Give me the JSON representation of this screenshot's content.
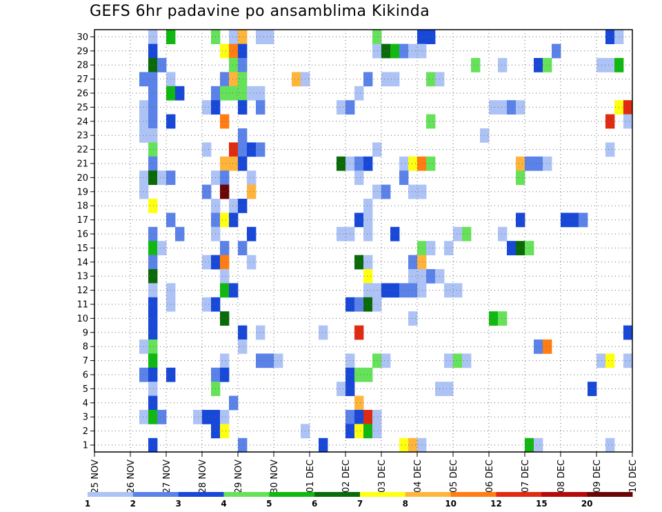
{
  "title": "GEFS 6hr padavine po ansamblima Kikinda",
  "chart_data": {
    "type": "heatmap",
    "title": "GEFS 6hr padavine po ansamblima Kikinda",
    "x_tick_labels": [
      "25 NOV",
      "26 NOV",
      "27 NOV",
      "28 NOV",
      "29 NOV",
      "30 NOV",
      "01 DEC",
      "02 DEC",
      "03 DEC",
      "04 DEC",
      "05 DEC",
      "06 DEC",
      "07 DEC",
      "08 DEC",
      "09 DEC",
      "10 DEC"
    ],
    "xlim_days": [
      0,
      15
    ],
    "steps_per_day": 4,
    "y_tick_labels": [
      "1",
      "2",
      "3",
      "4",
      "5",
      "6",
      "7",
      "8",
      "9",
      "10",
      "11",
      "12",
      "13",
      "14",
      "15",
      "16",
      "17",
      "18",
      "19",
      "20",
      "21",
      "22",
      "23",
      "24",
      "25",
      "26",
      "27",
      "28",
      "29",
      "30"
    ],
    "ylim": [
      0,
      30
    ],
    "grid": true,
    "colorbar": {
      "labels": [
        "1",
        "2",
        "3",
        "4",
        "5",
        "6",
        "7",
        "8",
        "10",
        "12",
        "15",
        "20"
      ],
      "colors": [
        "#aec3f5",
        "#5a82e8",
        "#1848d8",
        "#66e25a",
        "#12b812",
        "#0a6a0a",
        "#ffff12",
        "#ffb43c",
        "#ff7d12",
        "#e02a12",
        "#b40a0a",
        "#6a0505"
      ]
    },
    "cells": [
      {
        "m": 30,
        "t": 6,
        "c": 0
      },
      {
        "m": 30,
        "t": 8,
        "c": 4
      },
      {
        "m": 30,
        "t": 13,
        "c": 3
      },
      {
        "m": 30,
        "t": 15,
        "c": 0
      },
      {
        "m": 30,
        "t": 16,
        "c": 7
      },
      {
        "m": 30,
        "t": 18,
        "c": 0
      },
      {
        "m": 30,
        "t": 19,
        "c": 0
      },
      {
        "m": 30,
        "t": 31,
        "c": 3
      },
      {
        "m": 30,
        "t": 36,
        "c": 2
      },
      {
        "m": 30,
        "t": 37,
        "c": 2
      },
      {
        "m": 30,
        "t": 57,
        "c": 2
      },
      {
        "m": 30,
        "t": 58,
        "c": 0
      },
      {
        "m": 29,
        "t": 6,
        "c": 2
      },
      {
        "m": 29,
        "t": 14,
        "c": 6
      },
      {
        "m": 29,
        "t": 15,
        "c": 8
      },
      {
        "m": 29,
        "t": 16,
        "c": 2
      },
      {
        "m": 29,
        "t": 31,
        "c": 0
      },
      {
        "m": 29,
        "t": 32,
        "c": 5
      },
      {
        "m": 29,
        "t": 33,
        "c": 4
      },
      {
        "m": 29,
        "t": 34,
        "c": 1
      },
      {
        "m": 29,
        "t": 35,
        "c": 0
      },
      {
        "m": 29,
        "t": 36,
        "c": 0
      },
      {
        "m": 29,
        "t": 51,
        "c": 1
      },
      {
        "m": 28,
        "t": 6,
        "c": 5
      },
      {
        "m": 28,
        "t": 7,
        "c": 1
      },
      {
        "m": 28,
        "t": 15,
        "c": 3
      },
      {
        "m": 28,
        "t": 16,
        "c": 1
      },
      {
        "m": 28,
        "t": 42,
        "c": 3
      },
      {
        "m": 28,
        "t": 45,
        "c": 0
      },
      {
        "m": 28,
        "t": 49,
        "c": 2
      },
      {
        "m": 28,
        "t": 50,
        "c": 3
      },
      {
        "m": 28,
        "t": 56,
        "c": 0
      },
      {
        "m": 28,
        "t": 57,
        "c": 0
      },
      {
        "m": 28,
        "t": 58,
        "c": 4
      },
      {
        "m": 27,
        "t": 5,
        "c": 1
      },
      {
        "m": 27,
        "t": 6,
        "c": 1
      },
      {
        "m": 27,
        "t": 8,
        "c": 0
      },
      {
        "m": 27,
        "t": 14,
        "c": 1
      },
      {
        "m": 27,
        "t": 15,
        "c": 7
      },
      {
        "m": 27,
        "t": 16,
        "c": 3
      },
      {
        "m": 27,
        "t": 22,
        "c": 7
      },
      {
        "m": 27,
        "t": 23,
        "c": 0
      },
      {
        "m": 27,
        "t": 30,
        "c": 1
      },
      {
        "m": 27,
        "t": 32,
        "c": 0
      },
      {
        "m": 27,
        "t": 33,
        "c": 0
      },
      {
        "m": 27,
        "t": 37,
        "c": 3
      },
      {
        "m": 27,
        "t": 38,
        "c": 0
      },
      {
        "m": 26,
        "t": 6,
        "c": 1
      },
      {
        "m": 26,
        "t": 8,
        "c": 4
      },
      {
        "m": 26,
        "t": 9,
        "c": 2
      },
      {
        "m": 26,
        "t": 13,
        "c": 1
      },
      {
        "m": 26,
        "t": 14,
        "c": 3
      },
      {
        "m": 26,
        "t": 15,
        "c": 3
      },
      {
        "m": 26,
        "t": 16,
        "c": 3
      },
      {
        "m": 26,
        "t": 17,
        "c": 0
      },
      {
        "m": 26,
        "t": 18,
        "c": 0
      },
      {
        "m": 26,
        "t": 29,
        "c": 0
      },
      {
        "m": 25,
        "t": 5,
        "c": 0
      },
      {
        "m": 25,
        "t": 6,
        "c": 1
      },
      {
        "m": 25,
        "t": 12,
        "c": 0
      },
      {
        "m": 25,
        "t": 13,
        "c": 2
      },
      {
        "m": 25,
        "t": 16,
        "c": 2
      },
      {
        "m": 25,
        "t": 18,
        "c": 1
      },
      {
        "m": 25,
        "t": 27,
        "c": 0
      },
      {
        "m": 25,
        "t": 28,
        "c": 1
      },
      {
        "m": 25,
        "t": 44,
        "c": 0
      },
      {
        "m": 25,
        "t": 45,
        "c": 0
      },
      {
        "m": 25,
        "t": 46,
        "c": 1
      },
      {
        "m": 25,
        "t": 47,
        "c": 0
      },
      {
        "m": 25,
        "t": 58,
        "c": 6
      },
      {
        "m": 25,
        "t": 59,
        "c": 9
      },
      {
        "m": 24,
        "t": 5,
        "c": 0
      },
      {
        "m": 24,
        "t": 6,
        "c": 1
      },
      {
        "m": 24,
        "t": 8,
        "c": 2
      },
      {
        "m": 24,
        "t": 14,
        "c": 8
      },
      {
        "m": 24,
        "t": 37,
        "c": 3
      },
      {
        "m": 24,
        "t": 57,
        "c": 9
      },
      {
        "m": 24,
        "t": 59,
        "c": 0
      },
      {
        "m": 23,
        "t": 5,
        "c": 0
      },
      {
        "m": 23,
        "t": 6,
        "c": 0
      },
      {
        "m": 23,
        "t": 16,
        "c": 1
      },
      {
        "m": 23,
        "t": 43,
        "c": 0
      },
      {
        "m": 22,
        "t": 6,
        "c": 3
      },
      {
        "m": 22,
        "t": 12,
        "c": 0
      },
      {
        "m": 22,
        "t": 15,
        "c": 9
      },
      {
        "m": 22,
        "t": 16,
        "c": 1
      },
      {
        "m": 22,
        "t": 17,
        "c": 2
      },
      {
        "m": 22,
        "t": 18,
        "c": 1
      },
      {
        "m": 22,
        "t": 31,
        "c": 0
      },
      {
        "m": 22,
        "t": 57,
        "c": 0
      },
      {
        "m": 21,
        "t": 6,
        "c": 1
      },
      {
        "m": 21,
        "t": 14,
        "c": 7
      },
      {
        "m": 21,
        "t": 15,
        "c": 7
      },
      {
        "m": 21,
        "t": 16,
        "c": 2
      },
      {
        "m": 21,
        "t": 27,
        "c": 5
      },
      {
        "m": 21,
        "t": 28,
        "c": 0
      },
      {
        "m": 21,
        "t": 29,
        "c": 1
      },
      {
        "m": 21,
        "t": 30,
        "c": 2
      },
      {
        "m": 21,
        "t": 34,
        "c": 0
      },
      {
        "m": 21,
        "t": 35,
        "c": 6
      },
      {
        "m": 21,
        "t": 36,
        "c": 8
      },
      {
        "m": 21,
        "t": 37,
        "c": 3
      },
      {
        "m": 21,
        "t": 47,
        "c": 7
      },
      {
        "m": 21,
        "t": 48,
        "c": 1
      },
      {
        "m": 21,
        "t": 49,
        "c": 1
      },
      {
        "m": 21,
        "t": 50,
        "c": 0
      },
      {
        "m": 20,
        "t": 5,
        "c": 0
      },
      {
        "m": 20,
        "t": 6,
        "c": 5
      },
      {
        "m": 20,
        "t": 7,
        "c": 0
      },
      {
        "m": 20,
        "t": 8,
        "c": 1
      },
      {
        "m": 20,
        "t": 13,
        "c": 0
      },
      {
        "m": 20,
        "t": 14,
        "c": 1
      },
      {
        "m": 20,
        "t": 17,
        "c": 0
      },
      {
        "m": 20,
        "t": 29,
        "c": 0
      },
      {
        "m": 20,
        "t": 34,
        "c": 1
      },
      {
        "m": 20,
        "t": 47,
        "c": 3
      },
      {
        "m": 19,
        "t": 5,
        "c": 0
      },
      {
        "m": 19,
        "t": 12,
        "c": 1
      },
      {
        "m": 19,
        "t": 14,
        "c": 11
      },
      {
        "m": 19,
        "t": 17,
        "c": 7
      },
      {
        "m": 19,
        "t": 31,
        "c": 0
      },
      {
        "m": 19,
        "t": 32,
        "c": 1
      },
      {
        "m": 19,
        "t": 35,
        "c": 0
      },
      {
        "m": 19,
        "t": 36,
        "c": 0
      },
      {
        "m": 18,
        "t": 6,
        "c": 6
      },
      {
        "m": 18,
        "t": 13,
        "c": 0
      },
      {
        "m": 18,
        "t": 15,
        "c": 0
      },
      {
        "m": 18,
        "t": 16,
        "c": 2
      },
      {
        "m": 18,
        "t": 30,
        "c": 0
      },
      {
        "m": 17,
        "t": 8,
        "c": 1
      },
      {
        "m": 17,
        "t": 13,
        "c": 1
      },
      {
        "m": 17,
        "t": 14,
        "c": 6
      },
      {
        "m": 17,
        "t": 15,
        "c": 2
      },
      {
        "m": 17,
        "t": 29,
        "c": 2
      },
      {
        "m": 17,
        "t": 30,
        "c": 0
      },
      {
        "m": 17,
        "t": 47,
        "c": 2
      },
      {
        "m": 17,
        "t": 52,
        "c": 2
      },
      {
        "m": 17,
        "t": 53,
        "c": 2
      },
      {
        "m": 17,
        "t": 54,
        "c": 1
      },
      {
        "m": 16,
        "t": 6,
        "c": 1
      },
      {
        "m": 16,
        "t": 9,
        "c": 1
      },
      {
        "m": 16,
        "t": 13,
        "c": 0
      },
      {
        "m": 16,
        "t": 17,
        "c": 2
      },
      {
        "m": 16,
        "t": 27,
        "c": 0
      },
      {
        "m": 16,
        "t": 28,
        "c": 0
      },
      {
        "m": 16,
        "t": 30,
        "c": 0
      },
      {
        "m": 16,
        "t": 33,
        "c": 2
      },
      {
        "m": 16,
        "t": 40,
        "c": 0
      },
      {
        "m": 16,
        "t": 41,
        "c": 3
      },
      {
        "m": 16,
        "t": 45,
        "c": 0
      },
      {
        "m": 15,
        "t": 6,
        "c": 4
      },
      {
        "m": 15,
        "t": 7,
        "c": 0
      },
      {
        "m": 15,
        "t": 14,
        "c": 1
      },
      {
        "m": 15,
        "t": 16,
        "c": 1
      },
      {
        "m": 15,
        "t": 36,
        "c": 3
      },
      {
        "m": 15,
        "t": 37,
        "c": 0
      },
      {
        "m": 15,
        "t": 39,
        "c": 0
      },
      {
        "m": 15,
        "t": 46,
        "c": 2
      },
      {
        "m": 15,
        "t": 47,
        "c": 5
      },
      {
        "m": 15,
        "t": 48,
        "c": 3
      },
      {
        "m": 14,
        "t": 6,
        "c": 1
      },
      {
        "m": 14,
        "t": 12,
        "c": 0
      },
      {
        "m": 14,
        "t": 13,
        "c": 2
      },
      {
        "m": 14,
        "t": 14,
        "c": 8
      },
      {
        "m": 14,
        "t": 17,
        "c": 0
      },
      {
        "m": 14,
        "t": 29,
        "c": 5
      },
      {
        "m": 14,
        "t": 30,
        "c": 0
      },
      {
        "m": 14,
        "t": 35,
        "c": 1
      },
      {
        "m": 14,
        "t": 36,
        "c": 7
      },
      {
        "m": 13,
        "t": 6,
        "c": 5
      },
      {
        "m": 13,
        "t": 14,
        "c": 0
      },
      {
        "m": 13,
        "t": 30,
        "c": 6
      },
      {
        "m": 13,
        "t": 35,
        "c": 0
      },
      {
        "m": 13,
        "t": 36,
        "c": 0
      },
      {
        "m": 13,
        "t": 37,
        "c": 1
      },
      {
        "m": 13,
        "t": 38,
        "c": 0
      },
      {
        "m": 12,
        "t": 6,
        "c": 0
      },
      {
        "m": 12,
        "t": 8,
        "c": 0
      },
      {
        "m": 12,
        "t": 14,
        "c": 4
      },
      {
        "m": 12,
        "t": 15,
        "c": 2
      },
      {
        "m": 12,
        "t": 30,
        "c": 0
      },
      {
        "m": 12,
        "t": 31,
        "c": 0
      },
      {
        "m": 12,
        "t": 32,
        "c": 2
      },
      {
        "m": 12,
        "t": 33,
        "c": 2
      },
      {
        "m": 12,
        "t": 34,
        "c": 1
      },
      {
        "m": 12,
        "t": 35,
        "c": 1
      },
      {
        "m": 12,
        "t": 36,
        "c": 0
      },
      {
        "m": 12,
        "t": 39,
        "c": 0
      },
      {
        "m": 12,
        "t": 40,
        "c": 0
      },
      {
        "m": 11,
        "t": 6,
        "c": 2
      },
      {
        "m": 11,
        "t": 8,
        "c": 0
      },
      {
        "m": 11,
        "t": 12,
        "c": 0
      },
      {
        "m": 11,
        "t": 13,
        "c": 2
      },
      {
        "m": 11,
        "t": 28,
        "c": 2
      },
      {
        "m": 11,
        "t": 29,
        "c": 1
      },
      {
        "m": 11,
        "t": 30,
        "c": 5
      },
      {
        "m": 11,
        "t": 31,
        "c": 0
      },
      {
        "m": 10,
        "t": 6,
        "c": 2
      },
      {
        "m": 10,
        "t": 14,
        "c": 5
      },
      {
        "m": 10,
        "t": 35,
        "c": 0
      },
      {
        "m": 10,
        "t": 44,
        "c": 4
      },
      {
        "m": 10,
        "t": 45,
        "c": 3
      },
      {
        "m": 9,
        "t": 6,
        "c": 2
      },
      {
        "m": 9,
        "t": 16,
        "c": 2
      },
      {
        "m": 9,
        "t": 18,
        "c": 0
      },
      {
        "m": 9,
        "t": 25,
        "c": 0
      },
      {
        "m": 9,
        "t": 29,
        "c": 9
      },
      {
        "m": 9,
        "t": 59,
        "c": 2
      },
      {
        "m": 8,
        "t": 5,
        "c": 0
      },
      {
        "m": 8,
        "t": 6,
        "c": 3
      },
      {
        "m": 8,
        "t": 16,
        "c": 0
      },
      {
        "m": 8,
        "t": 49,
        "c": 1
      },
      {
        "m": 8,
        "t": 50,
        "c": 8
      },
      {
        "m": 7,
        "t": 6,
        "c": 4
      },
      {
        "m": 7,
        "t": 14,
        "c": 0
      },
      {
        "m": 7,
        "t": 18,
        "c": 1
      },
      {
        "m": 7,
        "t": 19,
        "c": 1
      },
      {
        "m": 7,
        "t": 20,
        "c": 0
      },
      {
        "m": 7,
        "t": 28,
        "c": 0
      },
      {
        "m": 7,
        "t": 31,
        "c": 3
      },
      {
        "m": 7,
        "t": 32,
        "c": 0
      },
      {
        "m": 7,
        "t": 39,
        "c": 0
      },
      {
        "m": 7,
        "t": 40,
        "c": 3
      },
      {
        "m": 7,
        "t": 41,
        "c": 0
      },
      {
        "m": 7,
        "t": 56,
        "c": 0
      },
      {
        "m": 7,
        "t": 57,
        "c": 6
      },
      {
        "m": 7,
        "t": 59,
        "c": 0
      },
      {
        "m": 6,
        "t": 5,
        "c": 1
      },
      {
        "m": 6,
        "t": 6,
        "c": 2
      },
      {
        "m": 6,
        "t": 8,
        "c": 2
      },
      {
        "m": 6,
        "t": 13,
        "c": 1
      },
      {
        "m": 6,
        "t": 14,
        "c": 2
      },
      {
        "m": 6,
        "t": 28,
        "c": 2
      },
      {
        "m": 6,
        "t": 29,
        "c": 3
      },
      {
        "m": 6,
        "t": 30,
        "c": 3
      },
      {
        "m": 5,
        "t": 6,
        "c": 0
      },
      {
        "m": 5,
        "t": 13,
        "c": 3
      },
      {
        "m": 5,
        "t": 27,
        "c": 0
      },
      {
        "m": 5,
        "t": 28,
        "c": 2
      },
      {
        "m": 5,
        "t": 38,
        "c": 0
      },
      {
        "m": 5,
        "t": 39,
        "c": 0
      },
      {
        "m": 5,
        "t": 55,
        "c": 2
      },
      {
        "m": 4,
        "t": 6,
        "c": 2
      },
      {
        "m": 4,
        "t": 15,
        "c": 1
      },
      {
        "m": 4,
        "t": 29,
        "c": 7
      },
      {
        "m": 3,
        "t": 5,
        "c": 0
      },
      {
        "m": 3,
        "t": 6,
        "c": 4
      },
      {
        "m": 3,
        "t": 7,
        "c": 1
      },
      {
        "m": 3,
        "t": 11,
        "c": 0
      },
      {
        "m": 3,
        "t": 12,
        "c": 2
      },
      {
        "m": 3,
        "t": 13,
        "c": 2
      },
      {
        "m": 3,
        "t": 14,
        "c": 0
      },
      {
        "m": 3,
        "t": 28,
        "c": 1
      },
      {
        "m": 3,
        "t": 29,
        "c": 2
      },
      {
        "m": 3,
        "t": 30,
        "c": 9
      },
      {
        "m": 3,
        "t": 31,
        "c": 0
      },
      {
        "m": 2,
        "t": 13,
        "c": 2
      },
      {
        "m": 2,
        "t": 14,
        "c": 6
      },
      {
        "m": 2,
        "t": 23,
        "c": 0
      },
      {
        "m": 2,
        "t": 28,
        "c": 2
      },
      {
        "m": 2,
        "t": 29,
        "c": 6
      },
      {
        "m": 2,
        "t": 30,
        "c": 4
      },
      {
        "m": 2,
        "t": 31,
        "c": 0
      },
      {
        "m": 1,
        "t": 6,
        "c": 2
      },
      {
        "m": 1,
        "t": 16,
        "c": 1
      },
      {
        "m": 1,
        "t": 25,
        "c": 2
      },
      {
        "m": 1,
        "t": 34,
        "c": 6
      },
      {
        "m": 1,
        "t": 35,
        "c": 7
      },
      {
        "m": 1,
        "t": 36,
        "c": 0
      },
      {
        "m": 1,
        "t": 48,
        "c": 4
      },
      {
        "m": 1,
        "t": 49,
        "c": 0
      },
      {
        "m": 1,
        "t": 57,
        "c": 0
      }
    ]
  }
}
